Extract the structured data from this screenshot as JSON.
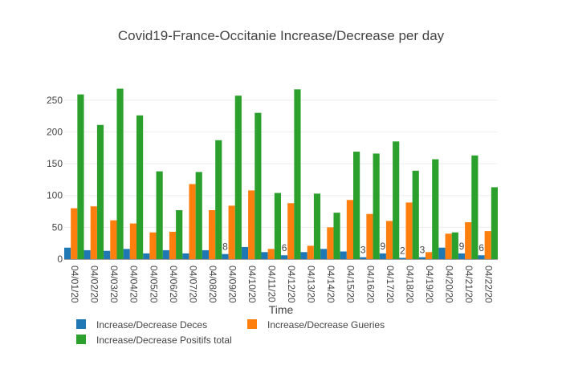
{
  "chart_data": {
    "type": "bar",
    "title": "Covid19-France-Occitanie Increase/Decrease per day",
    "xlabel": "Time",
    "ylabel": "",
    "ylim": [
      0,
      275
    ],
    "yticks": [
      0,
      50,
      100,
      150,
      200,
      250
    ],
    "grid": true,
    "legend_position": "bottom-left",
    "categories": [
      "04/01/20",
      "04/02/20",
      "04/03/20",
      "04/04/20",
      "04/05/20",
      "04/06/20",
      "04/07/20",
      "04/08/20",
      "04/09/20",
      "04/10/20",
      "04/11/20",
      "04/12/20",
      "04/13/20",
      "04/14/20",
      "04/15/20",
      "04/16/20",
      "04/17/20",
      "04/18/20",
      "04/19/20",
      "04/20/20",
      "04/21/20",
      "04/22/20"
    ],
    "series": [
      {
        "name": "Increase/Decrease Deces",
        "color": "#1f77b4",
        "values": [
          18,
          14,
          13,
          16,
          9,
          14,
          9,
          14,
          8,
          19,
          11,
          6,
          11,
          16,
          12,
          3,
          9,
          2,
          3,
          18,
          9,
          6
        ],
        "labels": [
          "",
          "",
          "",
          "",
          "",
          "",
          "",
          "",
          "8",
          "",
          "",
          "6",
          "",
          "",
          "",
          "3",
          "9",
          "2",
          "3",
          "",
          "9",
          "6"
        ]
      },
      {
        "name": "Increase/Decrease Gueries",
        "color": "#ff7f0e",
        "values": [
          80,
          83,
          61,
          56,
          42,
          43,
          118,
          77,
          84,
          108,
          16,
          88,
          21,
          50,
          93,
          71,
          60,
          89,
          11,
          40,
          58,
          44
        ],
        "labels": []
      },
      {
        "name": "Increase/Decrease Positifs total",
        "color": "#2ca02c",
        "values": [
          259,
          211,
          268,
          226,
          138,
          77,
          137,
          187,
          257,
          230,
          104,
          267,
          103,
          73,
          169,
          166,
          185,
          139,
          157,
          42,
          163,
          113
        ],
        "labels": []
      }
    ]
  }
}
